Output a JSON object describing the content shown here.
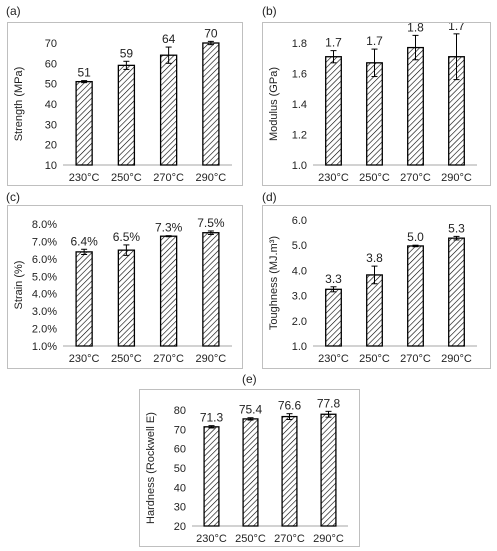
{
  "panels": [
    {
      "label": "(a)"
    },
    {
      "label": "(b)"
    },
    {
      "label": "(c)"
    },
    {
      "label": "(d)"
    },
    {
      "label": "(e)"
    }
  ],
  "chart_data": [
    {
      "id": "a",
      "type": "bar",
      "categories": [
        "230°C",
        "250°C",
        "270°C",
        "290°C"
      ],
      "values": [
        51,
        59,
        64,
        70
      ],
      "errors": [
        0.5,
        2,
        4,
        0.8
      ],
      "data_labels": [
        "51",
        "59",
        "64",
        "70"
      ],
      "ylabel": "Strength (MPa)",
      "ylim": [
        10,
        70
      ],
      "yticks": [
        10,
        20,
        30,
        40,
        50,
        60,
        70
      ],
      "ytick_labels": [
        "10",
        "20",
        "30",
        "40",
        "50",
        "60",
        "70"
      ],
      "grid": false
    },
    {
      "id": "b",
      "type": "bar",
      "categories": [
        "230°C",
        "250°C",
        "270°C",
        "290°C"
      ],
      "values": [
        1.71,
        1.67,
        1.77,
        1.71
      ],
      "errors": [
        0.04,
        0.09,
        0.08,
        0.15
      ],
      "data_labels": [
        "1.7",
        "1.7",
        "1.8",
        "1.7"
      ],
      "ylabel": "Modulus (GPa)",
      "ylim": [
        1.0,
        1.8
      ],
      "yticks": [
        1.0,
        1.2,
        1.4,
        1.6,
        1.8
      ],
      "ytick_labels": [
        "1.0",
        "1.2",
        "1.4",
        "1.6",
        "1.8"
      ],
      "grid": false
    },
    {
      "id": "c",
      "type": "bar",
      "categories": [
        "230°C",
        "250°C",
        "270°C",
        "290°C"
      ],
      "values": [
        6.4,
        6.5,
        7.3,
        7.5
      ],
      "errors": [
        0.15,
        0.3,
        0.03,
        0.1
      ],
      "data_labels": [
        "6.4%",
        "6.5%",
        "7.3%",
        "7.5%"
      ],
      "ylabel": "Strain (%)",
      "ylim": [
        1.0,
        8.0
      ],
      "yticks": [
        1,
        2,
        3,
        4,
        5,
        6,
        7,
        8
      ],
      "ytick_labels": [
        "1.0%",
        "2.0%",
        "3.0%",
        "4.0%",
        "5.0%",
        "6.0%",
        "7.0%",
        "8.0%"
      ],
      "grid": false
    },
    {
      "id": "d",
      "type": "bar",
      "categories": [
        "230°C",
        "250°C",
        "270°C",
        "290°C"
      ],
      "values": [
        3.25,
        3.82,
        4.97,
        5.28
      ],
      "errors": [
        0.1,
        0.35,
        0.03,
        0.07
      ],
      "data_labels": [
        "3.3",
        "3.8",
        "5.0",
        "5.3"
      ],
      "ylabel": "Toughness (MJ.m³)",
      "ylim": [
        1.0,
        6.0
      ],
      "yticks": [
        1,
        2,
        3,
        4,
        5,
        6
      ],
      "ytick_labels": [
        "1.0",
        "2.0",
        "3.0",
        "4.0",
        "5.0",
        "6.0"
      ],
      "grid": false
    },
    {
      "id": "e",
      "type": "bar",
      "categories": [
        "230°C",
        "250°C",
        "270°C",
        "290°C"
      ],
      "values": [
        71.3,
        75.4,
        76.6,
        77.8
      ],
      "errors": [
        0.6,
        0.6,
        1.5,
        1.5
      ],
      "data_labels": [
        "71.3",
        "75.4",
        "76.6",
        "77.8"
      ],
      "ylabel": "Hardness (Rockwell E)",
      "ylim": [
        20,
        80
      ],
      "yticks": [
        20,
        30,
        40,
        50,
        60,
        70,
        80
      ],
      "ytick_labels": [
        "20",
        "30",
        "40",
        "50",
        "60",
        "70",
        "80"
      ],
      "grid": false
    }
  ],
  "colors": {
    "bar_outline": "#000000",
    "hatch": "#000000",
    "axis": "#a6a6a6",
    "text": "#222222",
    "frame": "#bfbfbf"
  }
}
